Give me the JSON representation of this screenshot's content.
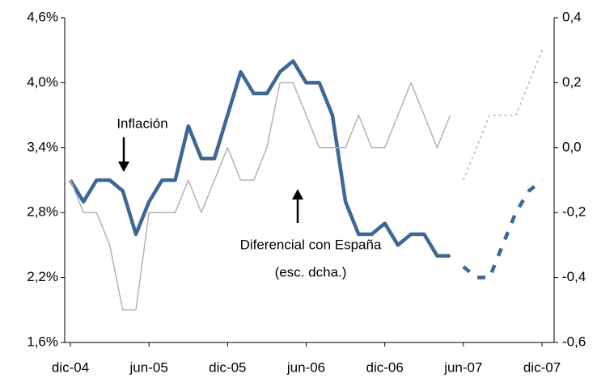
{
  "chart_data": {
    "type": "line",
    "categories": [
      "dic-04",
      null,
      null,
      null,
      null,
      null,
      "jun-05",
      null,
      null,
      null,
      null,
      null,
      "dic-05",
      null,
      null,
      null,
      null,
      null,
      "jun-06",
      null,
      null,
      null,
      null,
      null,
      "dic-06",
      null,
      null,
      null,
      null,
      null,
      "jun-07",
      null,
      null,
      null,
      null,
      null,
      "dic-07"
    ],
    "forecast_start": 29,
    "series": [
      {
        "name": "Inflación",
        "color": "#3d6896",
        "axis": "y",
        "values": [
          3.1,
          2.9,
          3.1,
          3.1,
          3.0,
          2.6,
          2.9,
          3.1,
          3.1,
          3.6,
          3.3,
          3.3,
          3.7,
          4.1,
          3.9,
          3.9,
          4.1,
          4.2,
          4.0,
          4.0,
          3.7,
          2.9,
          2.6,
          2.6,
          2.7,
          2.5,
          2.6,
          2.6,
          2.4,
          2.4,
          2.3,
          2.2,
          2.2,
          2.5,
          2.8,
          3.0,
          3.1
        ]
      },
      {
        "name": "Diferencial con España",
        "color": "#b3b3b3",
        "axis": "y2",
        "values": [
          -0.1,
          -0.2,
          -0.2,
          -0.3,
          -0.5,
          -0.5,
          -0.2,
          -0.2,
          -0.2,
          -0.1,
          -0.2,
          -0.1,
          0.0,
          -0.1,
          -0.1,
          0.0,
          0.2,
          0.2,
          0.1,
          0.0,
          0.0,
          0.0,
          0.1,
          0.0,
          0.0,
          0.1,
          0.2,
          0.1,
          0.0,
          0.1,
          -0.1,
          0.0,
          0.1,
          0.1,
          0.1,
          0.2,
          0.3
        ]
      }
    ],
    "annotations": [
      "(esc. dcha.)"
    ],
    "ylim": [
      1.6,
      4.6
    ],
    "yticks": [
      {
        "value": 1.6,
        "label": "1,6%"
      },
      {
        "value": 2.2,
        "label": "2,2%"
      },
      {
        "value": 2.8,
        "label": "2,8%"
      },
      {
        "value": 3.4,
        "label": "3,4%"
      },
      {
        "value": 4.0,
        "label": "4,0%"
      },
      {
        "value": 4.6,
        "label": "4,6%"
      }
    ],
    "y2lim": [
      -0.6,
      0.4
    ],
    "y2ticks": [
      {
        "value": -0.6,
        "label": "-0,6"
      },
      {
        "value": -0.4,
        "label": "-0,4"
      },
      {
        "value": -0.2,
        "label": "-0,2"
      },
      {
        "value": 0.0,
        "label": "0,0"
      },
      {
        "value": 0.2,
        "label": "0,2"
      },
      {
        "value": 0.4,
        "label": "0,4"
      }
    ],
    "grid": false
  }
}
